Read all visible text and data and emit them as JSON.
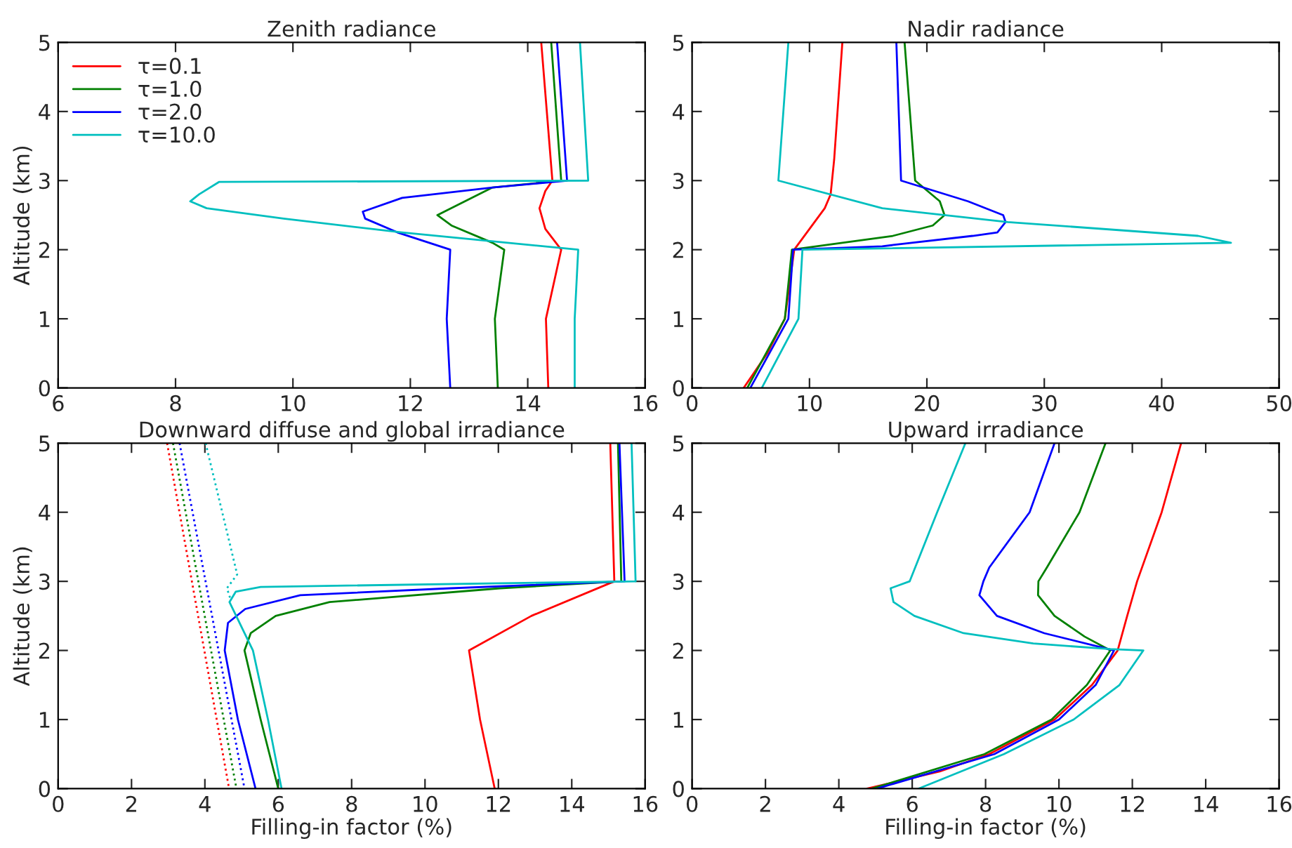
{
  "chart_data": [
    {
      "type": "line",
      "title": "Zenith radiance",
      "ylabel": "Altitude (km)",
      "xlim": [
        6,
        16
      ],
      "xticks": [
        6,
        8,
        10,
        12,
        14,
        16
      ],
      "ylim": [
        0,
        5
      ],
      "yticks": [
        0,
        1,
        2,
        3,
        4,
        5
      ],
      "legend": "top left",
      "grid": false,
      "marker": "none",
      "line_style": "solid",
      "series": [
        {
          "name": "τ=0.1",
          "color": "#ff0000",
          "x": [
            14.23,
            14.42,
            14.3,
            14.2,
            14.3,
            14.57,
            14.31,
            14.35
          ],
          "values": [
            5,
            3.0,
            2.85,
            2.6,
            2.3,
            2.0,
            1.0,
            0
          ]
        },
        {
          "name": "τ=1.0",
          "color": "#008000",
          "x": [
            14.4,
            14.57,
            13.4,
            12.46,
            12.7,
            13.4,
            13.6,
            13.44,
            13.49
          ],
          "values": [
            5,
            3.0,
            2.9,
            2.5,
            2.35,
            2.1,
            2.0,
            1.0,
            0
          ]
        },
        {
          "name": "τ=2.0",
          "color": "#0000ff",
          "x": [
            14.5,
            14.67,
            13.4,
            11.86,
            11.19,
            11.23,
            11.78,
            12.68,
            12.62,
            12.68
          ],
          "values": [
            5,
            3.0,
            2.9,
            2.75,
            2.55,
            2.45,
            2.25,
            2.0,
            1.0,
            0
          ]
        },
        {
          "name": "τ=10.0",
          "color": "#00bfbf",
          "x": [
            14.89,
            15.03,
            8.74,
            8.4,
            8.25,
            8.53,
            9.84,
            11.86,
            14.86,
            14.8,
            14.8
          ],
          "values": [
            5,
            3.0,
            2.98,
            2.8,
            2.7,
            2.6,
            2.45,
            2.25,
            2.0,
            1.0,
            0
          ]
        }
      ]
    },
    {
      "type": "line",
      "title": "Nadir radiance",
      "xlim": [
        0,
        50
      ],
      "xticks": [
        0,
        10,
        20,
        30,
        40,
        50
      ],
      "ylim": [
        0,
        5
      ],
      "yticks": [
        0,
        1,
        2,
        3,
        4,
        5
      ],
      "grid": false,
      "marker": "none",
      "line_style": "solid",
      "series": [
        {
          "color": "#ff0000",
          "x": [
            12.8,
            12.1,
            11.8,
            11.3,
            10.0,
            8.7,
            7.9,
            6.4,
            4.4
          ],
          "values": [
            5,
            3.3,
            2.8,
            2.6,
            2.3,
            2.0,
            1.0,
            0.5,
            0
          ]
        },
        {
          "color": "#008000",
          "x": [
            18.1,
            19.0,
            21.1,
            21.5,
            20.5,
            17.1,
            8.5,
            7.9,
            4.7
          ],
          "values": [
            5,
            3.0,
            2.7,
            2.5,
            2.35,
            2.2,
            2.0,
            1.0,
            0
          ]
        },
        {
          "color": "#0000ff",
          "x": [
            17.4,
            17.8,
            23.5,
            26.5,
            26.7,
            26.0,
            23.9,
            16.2,
            8.6,
            8.2,
            4.96
          ],
          "values": [
            5,
            3.0,
            2.7,
            2.5,
            2.4,
            2.25,
            2.2,
            2.05,
            2.0,
            1.0,
            0
          ]
        },
        {
          "color": "#00bfbf",
          "x": [
            8.2,
            7.35,
            16.2,
            26.9,
            43.1,
            45.9,
            9.4,
            9.06,
            5.94
          ],
          "values": [
            5,
            3.0,
            2.6,
            2.4,
            2.2,
            2.1,
            2.0,
            1.0,
            0
          ]
        }
      ]
    },
    {
      "type": "line",
      "title": "Downward diffuse and global irradiance",
      "xlabel": "Filling-in factor (%)",
      "ylabel": "Altitude (km)",
      "xlim": [
        0,
        16
      ],
      "xticks": [
        0,
        2,
        4,
        6,
        8,
        10,
        12,
        14,
        16
      ],
      "ylim": [
        0,
        5
      ],
      "yticks": [
        0,
        1,
        2,
        3,
        4,
        5
      ],
      "grid": false,
      "marker": "none",
      "line_style": "solid",
      "series": [
        {
          "color": "#ff0000",
          "x": [
            15.05,
            15.16,
            12.9,
            11.2,
            11.5,
            11.9
          ],
          "values": [
            5,
            3.0,
            2.5,
            2.0,
            1.0,
            0
          ]
        },
        {
          "color": "#008000",
          "x": [
            15.26,
            15.35,
            12.05,
            7.4,
            5.93,
            5.25,
            5.08,
            5.52,
            6.0
          ],
          "values": [
            5,
            3.0,
            2.9,
            2.7,
            2.5,
            2.25,
            2.0,
            1.0,
            0
          ]
        },
        {
          "color": "#0000ff",
          "x": [
            15.3,
            15.44,
            10.7,
            6.6,
            5.1,
            4.63,
            4.54,
            4.9,
            5.38
          ],
          "values": [
            5,
            3.0,
            2.9,
            2.8,
            2.6,
            2.4,
            2.0,
            1.0,
            0
          ]
        },
        {
          "color": "#00bfbf",
          "x": [
            15.63,
            15.74,
            5.52,
            4.84,
            4.67,
            5.31,
            5.72,
            6.09
          ],
          "values": [
            5,
            3.0,
            2.92,
            2.85,
            2.7,
            2.0,
            1.0,
            0
          ]
        },
        {
          "color": "#ff0000",
          "line_style": "dotted",
          "x": [
            2.97,
            4.66
          ],
          "values": [
            5,
            0
          ]
        },
        {
          "color": "#008000",
          "line_style": "dotted",
          "x": [
            3.13,
            4.86
          ],
          "values": [
            5,
            0
          ]
        },
        {
          "color": "#0000ff",
          "line_style": "dotted",
          "x": [
            3.31,
            5.08
          ],
          "values": [
            5,
            0
          ]
        },
        {
          "color": "#00bfbf",
          "line_style": "dotted",
          "x": [
            4.02,
            4.88,
            4.6,
            4.7
          ],
          "values": [
            5,
            3.1,
            2.9,
            2.74
          ]
        }
      ]
    },
    {
      "type": "line",
      "title": "Upward irradiance",
      "xlabel": "Filling-in factor (%)",
      "xlim": [
        0,
        16
      ],
      "xticks": [
        0,
        2,
        4,
        6,
        8,
        10,
        12,
        14,
        16
      ],
      "ylim": [
        0,
        5
      ],
      "yticks": [
        0,
        1,
        2,
        3,
        4,
        5
      ],
      "grid": false,
      "marker": "none",
      "line_style": "solid",
      "series": [
        {
          "color": "#ff0000",
          "x": [
            13.33,
            12.8,
            12.13,
            11.86,
            11.6,
            10.9,
            9.88,
            8.1,
            6.75,
            4.77
          ],
          "values": [
            5,
            4,
            3.0,
            2.5,
            2.0,
            1.5,
            1.0,
            0.5,
            0.25,
            0
          ]
        },
        {
          "color": "#008000",
          "x": [
            11.27,
            10.56,
            9.67,
            9.44,
            9.43,
            9.88,
            10.7,
            11.4,
            10.76,
            9.8,
            7.97,
            4.9
          ],
          "values": [
            5,
            4,
            3.2,
            3.0,
            2.8,
            2.5,
            2.2,
            2.0,
            1.5,
            1.0,
            0.5,
            0
          ]
        },
        {
          "color": "#0000ff",
          "x": [
            9.88,
            9.2,
            8.1,
            7.94,
            7.83,
            8.31,
            9.6,
            11.5,
            11.0,
            10.0,
            8.24,
            5.04
          ],
          "values": [
            5,
            4,
            3.2,
            3.0,
            2.8,
            2.5,
            2.25,
            2.0,
            1.5,
            1.0,
            0.5,
            0
          ]
        },
        {
          "color": "#00bfbf",
          "x": [
            7.45,
            6.68,
            5.93,
            5.41,
            5.49,
            6.06,
            7.4,
            9.3,
            11.4,
            12.3,
            11.65,
            10.4,
            8.5,
            6.17
          ],
          "values": [
            5,
            4,
            3.0,
            2.9,
            2.7,
            2.5,
            2.25,
            2.1,
            2.02,
            2.0,
            1.5,
            1.0,
            0.5,
            0
          ]
        }
      ]
    }
  ]
}
